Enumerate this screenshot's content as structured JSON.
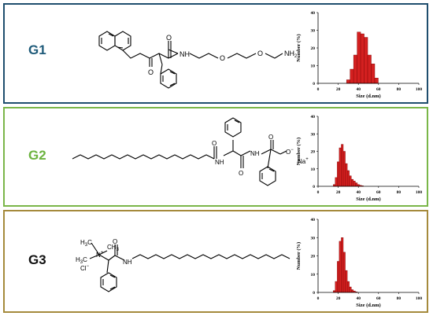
{
  "panels": [
    {
      "label": "G1",
      "atoms": {
        "o1": "O",
        "o2": "O",
        "nh": "NH",
        "o3": "O",
        "o4": "O",
        "nh2": "NH",
        "nh2_sub": "2"
      },
      "chart_data": {
        "type": "bar",
        "xlabel": "Size (d.nm)",
        "ylabel": "Number (%)",
        "xlim": [
          0,
          100
        ],
        "ylim": [
          0,
          40
        ],
        "xticks": [
          0,
          20,
          40,
          60,
          80,
          100
        ],
        "yticks": [
          0,
          10,
          20,
          30,
          40
        ],
        "bin_width": 3.5,
        "x": [
          30,
          33.5,
          37,
          40.5,
          44,
          47.5,
          51,
          54.5,
          58
        ],
        "values": [
          2,
          8,
          16,
          29,
          28,
          26,
          16,
          11,
          3
        ]
      }
    },
    {
      "label": "G2",
      "atoms": {
        "o1": "O",
        "nh1": "NH",
        "nh2": "NH",
        "o2": "O",
        "o3": "O",
        "ominus": "−",
        "na": "Na",
        "naplus": "+"
      },
      "chart_data": {
        "type": "bar",
        "xlabel": "Size (d.nm)",
        "ylabel": "Number (%)",
        "xlim": [
          0,
          100
        ],
        "ylim": [
          0,
          40
        ],
        "xticks": [
          0,
          20,
          40,
          60,
          80,
          100
        ],
        "yticks": [
          0,
          10,
          20,
          30,
          40
        ],
        "bin_width": 2,
        "x": [
          16,
          18,
          20,
          22,
          24,
          26,
          28,
          30,
          32,
          34,
          36,
          38,
          40,
          42,
          44
        ],
        "values": [
          1,
          5,
          14,
          22,
          24,
          20,
          13,
          9,
          6,
          4,
          3,
          2,
          1,
          0.6,
          0.3
        ]
      }
    },
    {
      "label": "G3",
      "atoms": {
        "h3c1": "H",
        "h3c1_sub": "3",
        "h3c1_c": "C",
        "ch3": "CH",
        "ch3_sub": "3",
        "nplus": "N",
        "nplus_sign": "+",
        "h3c2": "H",
        "h3c2_sub": "3",
        "h3c2_c": "C",
        "cl": "Cl",
        "clminus": "−",
        "o": "O",
        "nh": "NH"
      },
      "chart_data": {
        "type": "bar",
        "xlabel": "Size (d.nm)",
        "ylabel": "Number (%)",
        "xlim": [
          0,
          100
        ],
        "ylim": [
          0,
          40
        ],
        "xticks": [
          0,
          20,
          40,
          60,
          80,
          100
        ],
        "yticks": [
          0,
          10,
          20,
          30,
          40
        ],
        "bin_width": 2,
        "x": [
          16,
          18,
          20,
          22,
          24,
          26,
          28,
          30,
          32,
          34,
          36,
          38
        ],
        "values": [
          1,
          6,
          17,
          28,
          30,
          22,
          12,
          6,
          3,
          1.5,
          0.8,
          0.3
        ]
      }
    }
  ],
  "colors": {
    "bar_fill": "#d42020",
    "bar_stroke": "#7a0000",
    "panel1_border": "#1f4e6e",
    "panel2_border": "#7ab648",
    "panel3_border": "#a58a3c"
  }
}
